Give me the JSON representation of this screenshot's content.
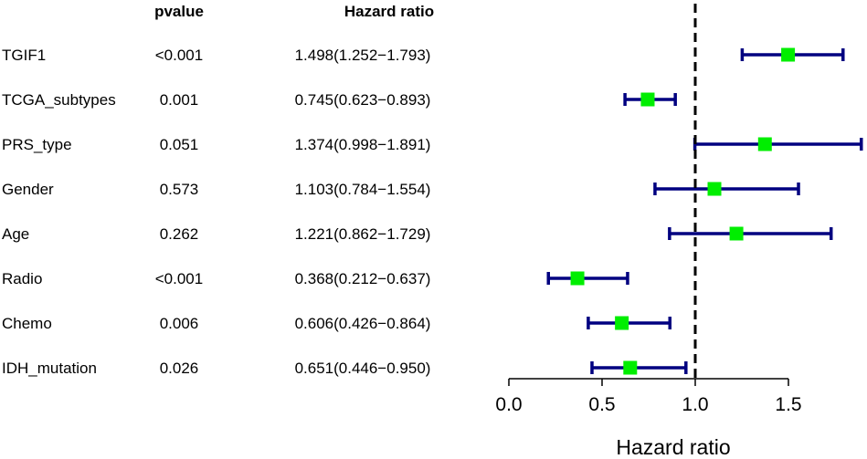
{
  "chart_data": {
    "type": "forest",
    "headers": {
      "pvalue": "pvalue",
      "hr": "Hazard ratio"
    },
    "rows": [
      {
        "label": "TGIF1",
        "pvalue": "<0.001",
        "hr_text": "1.498(1.252−1.793)",
        "hr": 1.498,
        "lower": 1.252,
        "upper": 1.793
      },
      {
        "label": "TCGA_subtypes",
        "pvalue": "0.001",
        "hr_text": "0.745(0.623−0.893)",
        "hr": 0.745,
        "lower": 0.623,
        "upper": 0.893
      },
      {
        "label": "PRS_type",
        "pvalue": "0.051",
        "hr_text": "1.374(0.998−1.891)",
        "hr": 1.374,
        "lower": 0.998,
        "upper": 1.891
      },
      {
        "label": "Gender",
        "pvalue": "0.573",
        "hr_text": "1.103(0.784−1.554)",
        "hr": 1.103,
        "lower": 0.784,
        "upper": 1.554
      },
      {
        "label": "Age",
        "pvalue": "0.262",
        "hr_text": "1.221(0.862−1.729)",
        "hr": 1.221,
        "lower": 0.862,
        "upper": 1.729
      },
      {
        "label": "Radio",
        "pvalue": "<0.001",
        "hr_text": "0.368(0.212−0.637)",
        "hr": 0.368,
        "lower": 0.212,
        "upper": 0.637
      },
      {
        "label": "Chemo",
        "pvalue": "0.006",
        "hr_text": "0.606(0.426−0.864)",
        "hr": 0.606,
        "lower": 0.426,
        "upper": 0.864
      },
      {
        "label": "IDH_mutation",
        "pvalue": "0.026",
        "hr_text": "0.651(0.446−0.950)",
        "hr": 0.651,
        "lower": 0.446,
        "upper": 0.95
      }
    ],
    "xlabel": "Hazard ratio",
    "xlim": [
      0,
      1.9
    ],
    "xticks": [
      0.0,
      0.5,
      1.0,
      1.5
    ],
    "xtick_labels": [
      "0.0",
      "0.5",
      "1.0",
      "1.5"
    ],
    "reference_line": 1.0,
    "colors": {
      "box": "#00ee00",
      "ci": "#000080",
      "ref": "#000000"
    }
  }
}
